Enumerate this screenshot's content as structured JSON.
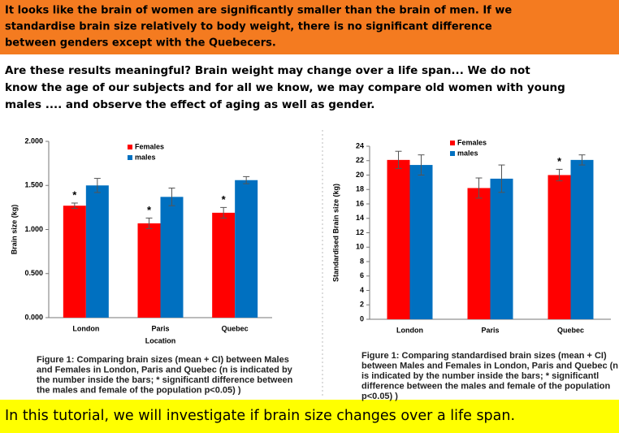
{
  "header": {
    "lines": [
      "It looks like the brain of women are significantly smaller than the brain of men.  If we",
      "standardise brain size relatively to body weight, there is no significant difference",
      "between genders except with the Quebecers."
    ]
  },
  "paragraph": {
    "lines": [
      "Are these results meaningful? Brain weight may change over a life span... We do not",
      "know the age of our subjects and for all we know, we may compare old women with young",
      "males .... and observe the effect of aging as well as gender."
    ]
  },
  "chart_data": [
    {
      "type": "bar",
      "y_label": "Brain size (kg)",
      "x_label": "Location",
      "categories": [
        "London",
        "Paris",
        "Quebec"
      ],
      "series": [
        {
          "name": "Females",
          "color": "#ff0000",
          "values": [
            1.27,
            1.07,
            1.19
          ],
          "errors": [
            0.03,
            0.06,
            0.06
          ]
        },
        {
          "name": "males",
          "color": "#0070c0",
          "values": [
            1.5,
            1.37,
            1.56
          ],
          "errors": [
            0.08,
            0.1,
            0.04
          ]
        }
      ],
      "significance": [
        "*",
        "*",
        "*"
      ],
      "ylim": [
        0,
        2
      ],
      "yticks": [
        {
          "value": 0,
          "label": "0.000"
        },
        {
          "value": 0.5,
          "label": "0.500"
        },
        {
          "value": 1,
          "label": "1.000"
        },
        {
          "value": 1.5,
          "label": "1.500"
        },
        {
          "value": 2,
          "label": "2.000"
        }
      ],
      "grid": false,
      "caption": [
        "Figure 1: Comparing brain sizes (mean + CI) between Males",
        "and Females in London, Paris and Quebec (n is indicated by",
        "the number inside the bars; * significantl difference between",
        "the males and female of the population p<0.05) )"
      ]
    },
    {
      "type": "bar",
      "y_label": "Standardised Brain size (kg)",
      "categories": [
        "London",
        "Paris",
        "Quebec"
      ],
      "series": [
        {
          "name": "Females",
          "color": "#ff0000",
          "values": [
            22.1,
            18.2,
            20.0
          ],
          "errors": [
            1.2,
            1.4,
            0.8
          ]
        },
        {
          "name": "males",
          "color": "#0070c0",
          "values": [
            21.4,
            19.5,
            22.1
          ],
          "errors": [
            1.4,
            1.9,
            0.7
          ]
        }
      ],
      "significance": [
        null,
        null,
        "*"
      ],
      "ylim": [
        0,
        24
      ],
      "yticks": [
        0,
        2,
        4,
        6,
        8,
        10,
        12,
        14,
        16,
        18,
        20,
        22,
        24
      ],
      "grid": false,
      "caption": [
        "Figure 1: Comparing standardised  brain sizes (mean + CI)",
        "between Males and Females in London, Paris and Quebec (n",
        "is indicated by the number inside the bars; * significantl",
        "difference between the males and female of the population",
        "p<0.05) )"
      ]
    }
  ],
  "footer": "In this tutorial, we will investigate if brain size changes over a life span."
}
